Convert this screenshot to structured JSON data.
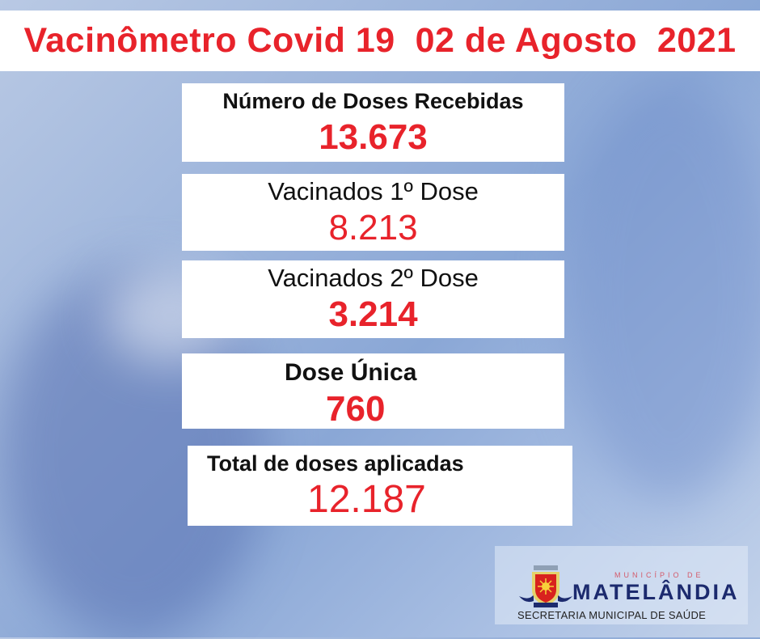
{
  "title": "Vacinômetro Covid 19  02 de Agosto  2021",
  "cards": [
    {
      "label": "Número de Doses Recebidas",
      "value": "13.673"
    },
    {
      "label": "Vacinados 1º Dose",
      "value": "8.213"
    },
    {
      "label": "Vacinados 2º Dose",
      "value": "3.214"
    },
    {
      "label": "Dose Única",
      "value": "760"
    },
    {
      "label": "Total de doses aplicadas",
      "value": "12.187"
    }
  ],
  "logo": {
    "municipio": "MUNICÍPIO DE",
    "name": "MATELÂNDIA",
    "secretaria": "SECRETARIA MUNICIPAL DE SAÚDE"
  },
  "colors": {
    "accent": "#e8232b",
    "logo_text": "#1c2a6e"
  }
}
